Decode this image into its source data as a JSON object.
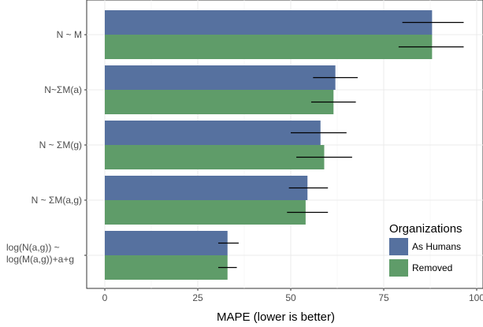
{
  "chart_data": {
    "type": "bar",
    "orientation": "horizontal",
    "categories": [
      "N ~ M",
      "N~ΣM(a)",
      "N ~ ΣM(g)",
      "N ~ ΣM(a,g)",
      [
        "log(N(a,g)) ~",
        "log(M(a,g))+a+g"
      ]
    ],
    "series": [
      {
        "name": "As Humans",
        "color": "#56719f",
        "values": [
          88,
          62,
          58,
          54.5,
          33
        ],
        "error_low": [
          80,
          56,
          50,
          49.5,
          30.5
        ],
        "error_high": [
          96.5,
          68,
          65,
          60,
          36
        ]
      },
      {
        "name": "Removed",
        "color": "#5f9c69",
        "values": [
          88,
          61.5,
          59,
          54,
          33
        ],
        "error_low": [
          79,
          55.5,
          51.5,
          49,
          30.5
        ],
        "error_high": [
          96.5,
          67.5,
          66.5,
          60,
          35.5
        ]
      }
    ],
    "xlabel": "MAPE (lower is better)",
    "ylabel": "",
    "xlim": [
      -5,
      100
    ],
    "xticks": [
      "0",
      "25",
      "50",
      "75",
      "100"
    ],
    "xtick_values": [
      0,
      25,
      50,
      75,
      100
    ],
    "grid": true,
    "legend": {
      "title": "Organizations",
      "position": "bottom-right",
      "entries": [
        "As Humans",
        "Removed"
      ]
    }
  }
}
